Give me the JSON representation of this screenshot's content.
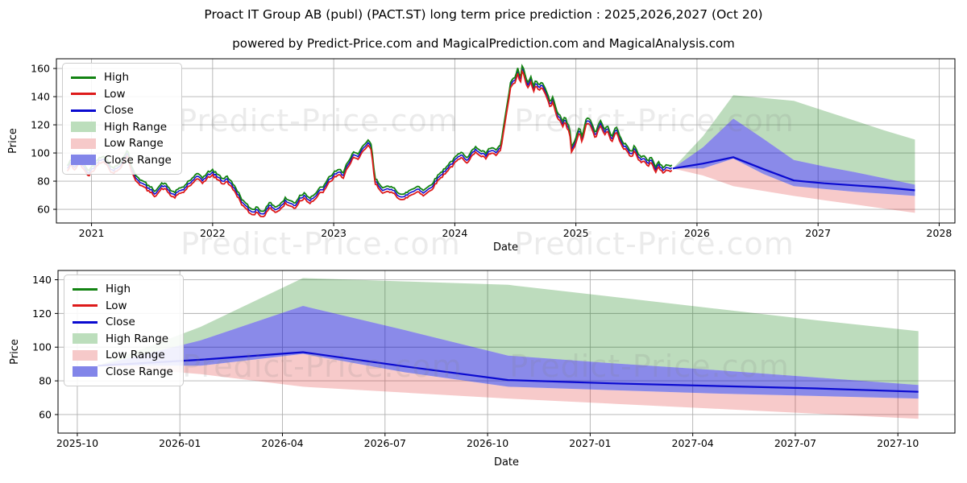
{
  "title": "Proact IT Group AB (publ) (PACT.ST) long term price prediction : 2025,2026,2027 (Oct 20)",
  "subtitle": "powered by Predict-Price.com and MagicalPrediction.com and MagicalAnalysis.com",
  "watermark": "Predict-Price.com",
  "colors": {
    "high_line": "#128312",
    "low_line": "#dd1a1a",
    "close_line": "#0a0ad0",
    "high_range_fill": "rgba(18,131,18,0.28)",
    "low_range_fill": "rgba(221,26,26,0.23)",
    "close_range_fill": "rgba(10,10,208,0.48)",
    "grid": "#b0b0b0",
    "spine": "#000000",
    "legend_high_swatch": "#128312",
    "legend_low_swatch": "#dd1a1a",
    "legend_close_swatch": "#0a0ad0",
    "legend_high_range_swatch": "#bcdebc",
    "legend_low_range_swatch": "#f6c9c9",
    "legend_close_range_swatch": "#8285e9"
  },
  "legend": [
    {
      "label": "High",
      "kind": "line",
      "color_key": "legend_high_swatch"
    },
    {
      "label": "Low",
      "kind": "line",
      "color_key": "legend_low_swatch"
    },
    {
      "label": "Close",
      "kind": "line",
      "color_key": "legend_close_swatch"
    },
    {
      "label": "High Range",
      "kind": "patch",
      "color_key": "legend_high_range_swatch"
    },
    {
      "label": "Low Range",
      "kind": "patch",
      "color_key": "legend_low_range_swatch"
    },
    {
      "label": "Close Range",
      "kind": "patch",
      "color_key": "legend_close_range_swatch"
    }
  ],
  "chart_data": [
    {
      "type": "line",
      "name": "full-history-and-forecast",
      "xlabel": "Date",
      "ylabel": "Price",
      "grid": true,
      "legend_position": "upper left",
      "xlim": [
        2020.71,
        2028.13
      ],
      "ylim": [
        50.3,
        166.9
      ],
      "x_ticks": [
        {
          "pos": 2021,
          "label": "2021"
        },
        {
          "pos": 2022,
          "label": "2022"
        },
        {
          "pos": 2023,
          "label": "2023"
        },
        {
          "pos": 2024,
          "label": "2024"
        },
        {
          "pos": 2025,
          "label": "2025"
        },
        {
          "pos": 2026,
          "label": "2026"
        },
        {
          "pos": 2027,
          "label": "2027"
        },
        {
          "pos": 2028,
          "label": "2028"
        }
      ],
      "y_ticks": [
        60,
        80,
        100,
        120,
        140,
        160
      ],
      "history": {
        "note": "daily OHLC history 2020-10-20 to 2025-10-20; close keypoints [decimalYear, price]",
        "high_offset": 1.9,
        "low_offset": -1.9,
        "close_keypoints": [
          [
            2020.8,
            89
          ],
          [
            2020.83,
            93
          ],
          [
            2020.86,
            90
          ],
          [
            2020.9,
            95
          ],
          [
            2020.94,
            89
          ],
          [
            2020.98,
            86
          ],
          [
            2021.02,
            90
          ],
          [
            2021.06,
            95
          ],
          [
            2021.1,
            97
          ],
          [
            2021.14,
            92
          ],
          [
            2021.18,
            87
          ],
          [
            2021.22,
            90
          ],
          [
            2021.26,
            95
          ],
          [
            2021.3,
            101
          ],
          [
            2021.33,
            88
          ],
          [
            2021.36,
            83
          ],
          [
            2021.4,
            80
          ],
          [
            2021.44,
            77
          ],
          [
            2021.48,
            74
          ],
          [
            2021.52,
            72
          ],
          [
            2021.56,
            75
          ],
          [
            2021.6,
            77
          ],
          [
            2021.64,
            73
          ],
          [
            2021.68,
            70
          ],
          [
            2021.72,
            72
          ],
          [
            2021.76,
            74
          ],
          [
            2021.8,
            78
          ],
          [
            2021.84,
            80
          ],
          [
            2021.88,
            83
          ],
          [
            2021.92,
            81
          ],
          [
            2021.96,
            84
          ],
          [
            2022.0,
            86
          ],
          [
            2022.04,
            83
          ],
          [
            2022.08,
            80
          ],
          [
            2022.12,
            82
          ],
          [
            2022.16,
            77
          ],
          [
            2022.2,
            72
          ],
          [
            2022.24,
            66
          ],
          [
            2022.28,
            61
          ],
          [
            2022.32,
            58
          ],
          [
            2022.36,
            60
          ],
          [
            2022.4,
            57
          ],
          [
            2022.44,
            59
          ],
          [
            2022.48,
            63
          ],
          [
            2022.52,
            60
          ],
          [
            2022.56,
            62
          ],
          [
            2022.6,
            66
          ],
          [
            2022.64,
            64
          ],
          [
            2022.68,
            63
          ],
          [
            2022.72,
            68
          ],
          [
            2022.76,
            70
          ],
          [
            2022.8,
            67
          ],
          [
            2022.84,
            69
          ],
          [
            2022.88,
            72
          ],
          [
            2022.92,
            75
          ],
          [
            2022.96,
            80
          ],
          [
            2023.0,
            84
          ],
          [
            2023.04,
            87
          ],
          [
            2023.08,
            83
          ],
          [
            2023.12,
            93
          ],
          [
            2023.16,
            99
          ],
          [
            2023.2,
            96
          ],
          [
            2023.24,
            102
          ],
          [
            2023.28,
            107
          ],
          [
            2023.31,
            104
          ],
          [
            2023.34,
            80
          ],
          [
            2023.38,
            76
          ],
          [
            2023.42,
            74
          ],
          [
            2023.46,
            73
          ],
          [
            2023.5,
            74
          ],
          [
            2023.54,
            70
          ],
          [
            2023.58,
            68
          ],
          [
            2023.62,
            71
          ],
          [
            2023.66,
            73
          ],
          [
            2023.7,
            75
          ],
          [
            2023.74,
            72
          ],
          [
            2023.78,
            74
          ],
          [
            2023.82,
            78
          ],
          [
            2023.86,
            82
          ],
          [
            2023.9,
            86
          ],
          [
            2023.94,
            90
          ],
          [
            2023.98,
            93
          ],
          [
            2024.02,
            96
          ],
          [
            2024.06,
            98
          ],
          [
            2024.1,
            96
          ],
          [
            2024.14,
            100
          ],
          [
            2024.18,
            102
          ],
          [
            2024.22,
            100
          ],
          [
            2024.26,
            98
          ],
          [
            2024.3,
            102
          ],
          [
            2024.34,
            99
          ],
          [
            2024.38,
            104
          ],
          [
            2024.42,
            126
          ],
          [
            2024.46,
            147
          ],
          [
            2024.5,
            152
          ],
          [
            2024.52,
            158
          ],
          [
            2024.54,
            150
          ],
          [
            2024.56,
            161
          ],
          [
            2024.58,
            153
          ],
          [
            2024.6,
            148
          ],
          [
            2024.63,
            152
          ],
          [
            2024.65,
            144
          ],
          [
            2024.67,
            150
          ],
          [
            2024.7,
            146
          ],
          [
            2024.72,
            149
          ],
          [
            2024.75,
            143
          ],
          [
            2024.77,
            138
          ],
          [
            2024.79,
            134
          ],
          [
            2024.81,
            137
          ],
          [
            2024.83,
            131
          ],
          [
            2024.85,
            127
          ],
          [
            2024.87,
            124
          ],
          [
            2024.89,
            120
          ],
          [
            2024.91,
            125
          ],
          [
            2024.93,
            118
          ],
          [
            2024.95,
            117
          ],
          [
            2024.96,
            103
          ],
          [
            2024.99,
            108
          ],
          [
            2025.01,
            112
          ],
          [
            2025.03,
            116
          ],
          [
            2025.05,
            110
          ],
          [
            2025.07,
            118
          ],
          [
            2025.09,
            124
          ],
          [
            2025.12,
            121
          ],
          [
            2025.14,
            116
          ],
          [
            2025.16,
            112
          ],
          [
            2025.18,
            117
          ],
          [
            2025.2,
            122
          ],
          [
            2025.22,
            119
          ],
          [
            2025.24,
            115
          ],
          [
            2025.26,
            118
          ],
          [
            2025.28,
            113
          ],
          [
            2025.3,
            110
          ],
          [
            2025.32,
            114
          ],
          [
            2025.34,
            117
          ],
          [
            2025.36,
            112
          ],
          [
            2025.38,
            108
          ],
          [
            2025.4,
            105
          ],
          [
            2025.42,
            103
          ],
          [
            2025.44,
            100
          ],
          [
            2025.46,
            99
          ],
          [
            2025.48,
            103
          ],
          [
            2025.5,
            100
          ],
          [
            2025.52,
            97
          ],
          [
            2025.54,
            95
          ],
          [
            2025.56,
            98
          ],
          [
            2025.58,
            94
          ],
          [
            2025.6,
            92
          ],
          [
            2025.62,
            95
          ],
          [
            2025.64,
            91
          ],
          [
            2025.66,
            89
          ],
          [
            2025.68,
            92
          ],
          [
            2025.7,
            90
          ],
          [
            2025.72,
            88
          ],
          [
            2025.74,
            90
          ],
          [
            2025.76,
            89
          ],
          [
            2025.8,
            89
          ]
        ]
      },
      "prediction": {
        "note": "forecast 2025-10-20 to 2027-10-20 [decimalYear]",
        "dates": [
          2025.8,
          2026.05,
          2026.3,
          2026.55,
          2026.8,
          2027.05,
          2027.3,
          2027.55,
          2027.8
        ],
        "close": [
          89,
          92.5,
          97,
          88.5,
          80.5,
          78.5,
          77,
          75.5,
          73.5
        ],
        "close_range_top": [
          89,
          104,
          124.5,
          110,
          95,
          90.5,
          86.5,
          82,
          77.5
        ],
        "close_range_bottom": [
          89,
          89,
          96,
          85,
          76.5,
          74.5,
          72.5,
          71,
          69.5
        ],
        "high_range_top": [
          89,
          112,
          141,
          139,
          137,
          130,
          123,
          116,
          109.5
        ],
        "low_range_bottom": [
          89,
          84,
          76.5,
          73,
          69.5,
          66.5,
          63.5,
          60.5,
          57.5
        ]
      }
    },
    {
      "type": "line",
      "name": "forecast-zoom",
      "xlabel": "Date",
      "ylabel": "Price",
      "grid": true,
      "legend_position": "upper left",
      "xlim": [
        2025.703,
        2027.889
      ],
      "ylim": [
        49,
        145.5
      ],
      "x_ticks": [
        {
          "pos": 2025.75,
          "label": "2025-10"
        },
        {
          "pos": 2026.0,
          "label": "2026-01"
        },
        {
          "pos": 2026.25,
          "label": "2026-04"
        },
        {
          "pos": 2026.5,
          "label": "2026-07"
        },
        {
          "pos": 2026.75,
          "label": "2026-10"
        },
        {
          "pos": 2027.0,
          "label": "2027-01"
        },
        {
          "pos": 2027.25,
          "label": "2027-04"
        },
        {
          "pos": 2027.5,
          "label": "2027-07"
        },
        {
          "pos": 2027.75,
          "label": "2027-10"
        }
      ],
      "y_ticks": [
        60,
        80,
        100,
        120,
        140
      ],
      "prediction": {
        "dates": [
          2025.8,
          2026.05,
          2026.3,
          2026.55,
          2026.8,
          2027.05,
          2027.3,
          2027.55,
          2027.8
        ],
        "close": [
          89,
          92.5,
          97,
          88.5,
          80.5,
          78.5,
          77,
          75.5,
          73.5
        ],
        "close_range_top": [
          89,
          104,
          124.5,
          110,
          95,
          90.5,
          86.5,
          82,
          77.5
        ],
        "close_range_bottom": [
          89,
          89,
          96,
          85,
          76.5,
          74.5,
          72.5,
          71,
          69.5
        ],
        "high_range_top": [
          89,
          112,
          141,
          139,
          137,
          130,
          123,
          116,
          109.5
        ],
        "low_range_bottom": [
          89,
          84,
          76.5,
          73,
          69.5,
          66.5,
          63.5,
          60.5,
          57.5
        ]
      }
    }
  ]
}
